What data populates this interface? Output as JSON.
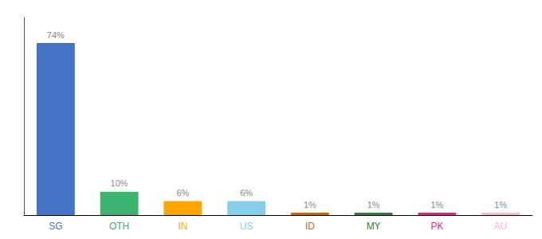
{
  "chart_data": {
    "type": "bar",
    "categories": [
      "SG",
      "OTH",
      "IN",
      "US",
      "ID",
      "MY",
      "PK",
      "AU"
    ],
    "values": [
      74,
      10,
      6,
      6,
      1,
      1,
      1,
      1
    ],
    "value_labels": [
      "74%",
      "10%",
      "6%",
      "6%",
      "1%",
      "1%",
      "1%",
      "1%"
    ],
    "data_labels": true,
    "colors": [
      "#4472C4",
      "#3CB371",
      "#FFA500",
      "#87CEEB",
      "#CD6600",
      "#2E7D32",
      "#E91E8C",
      "#FFB6C1"
    ],
    "ylim": [
      0,
      85
    ],
    "yticks": [],
    "grid": false,
    "tick_labels": "x"
  }
}
